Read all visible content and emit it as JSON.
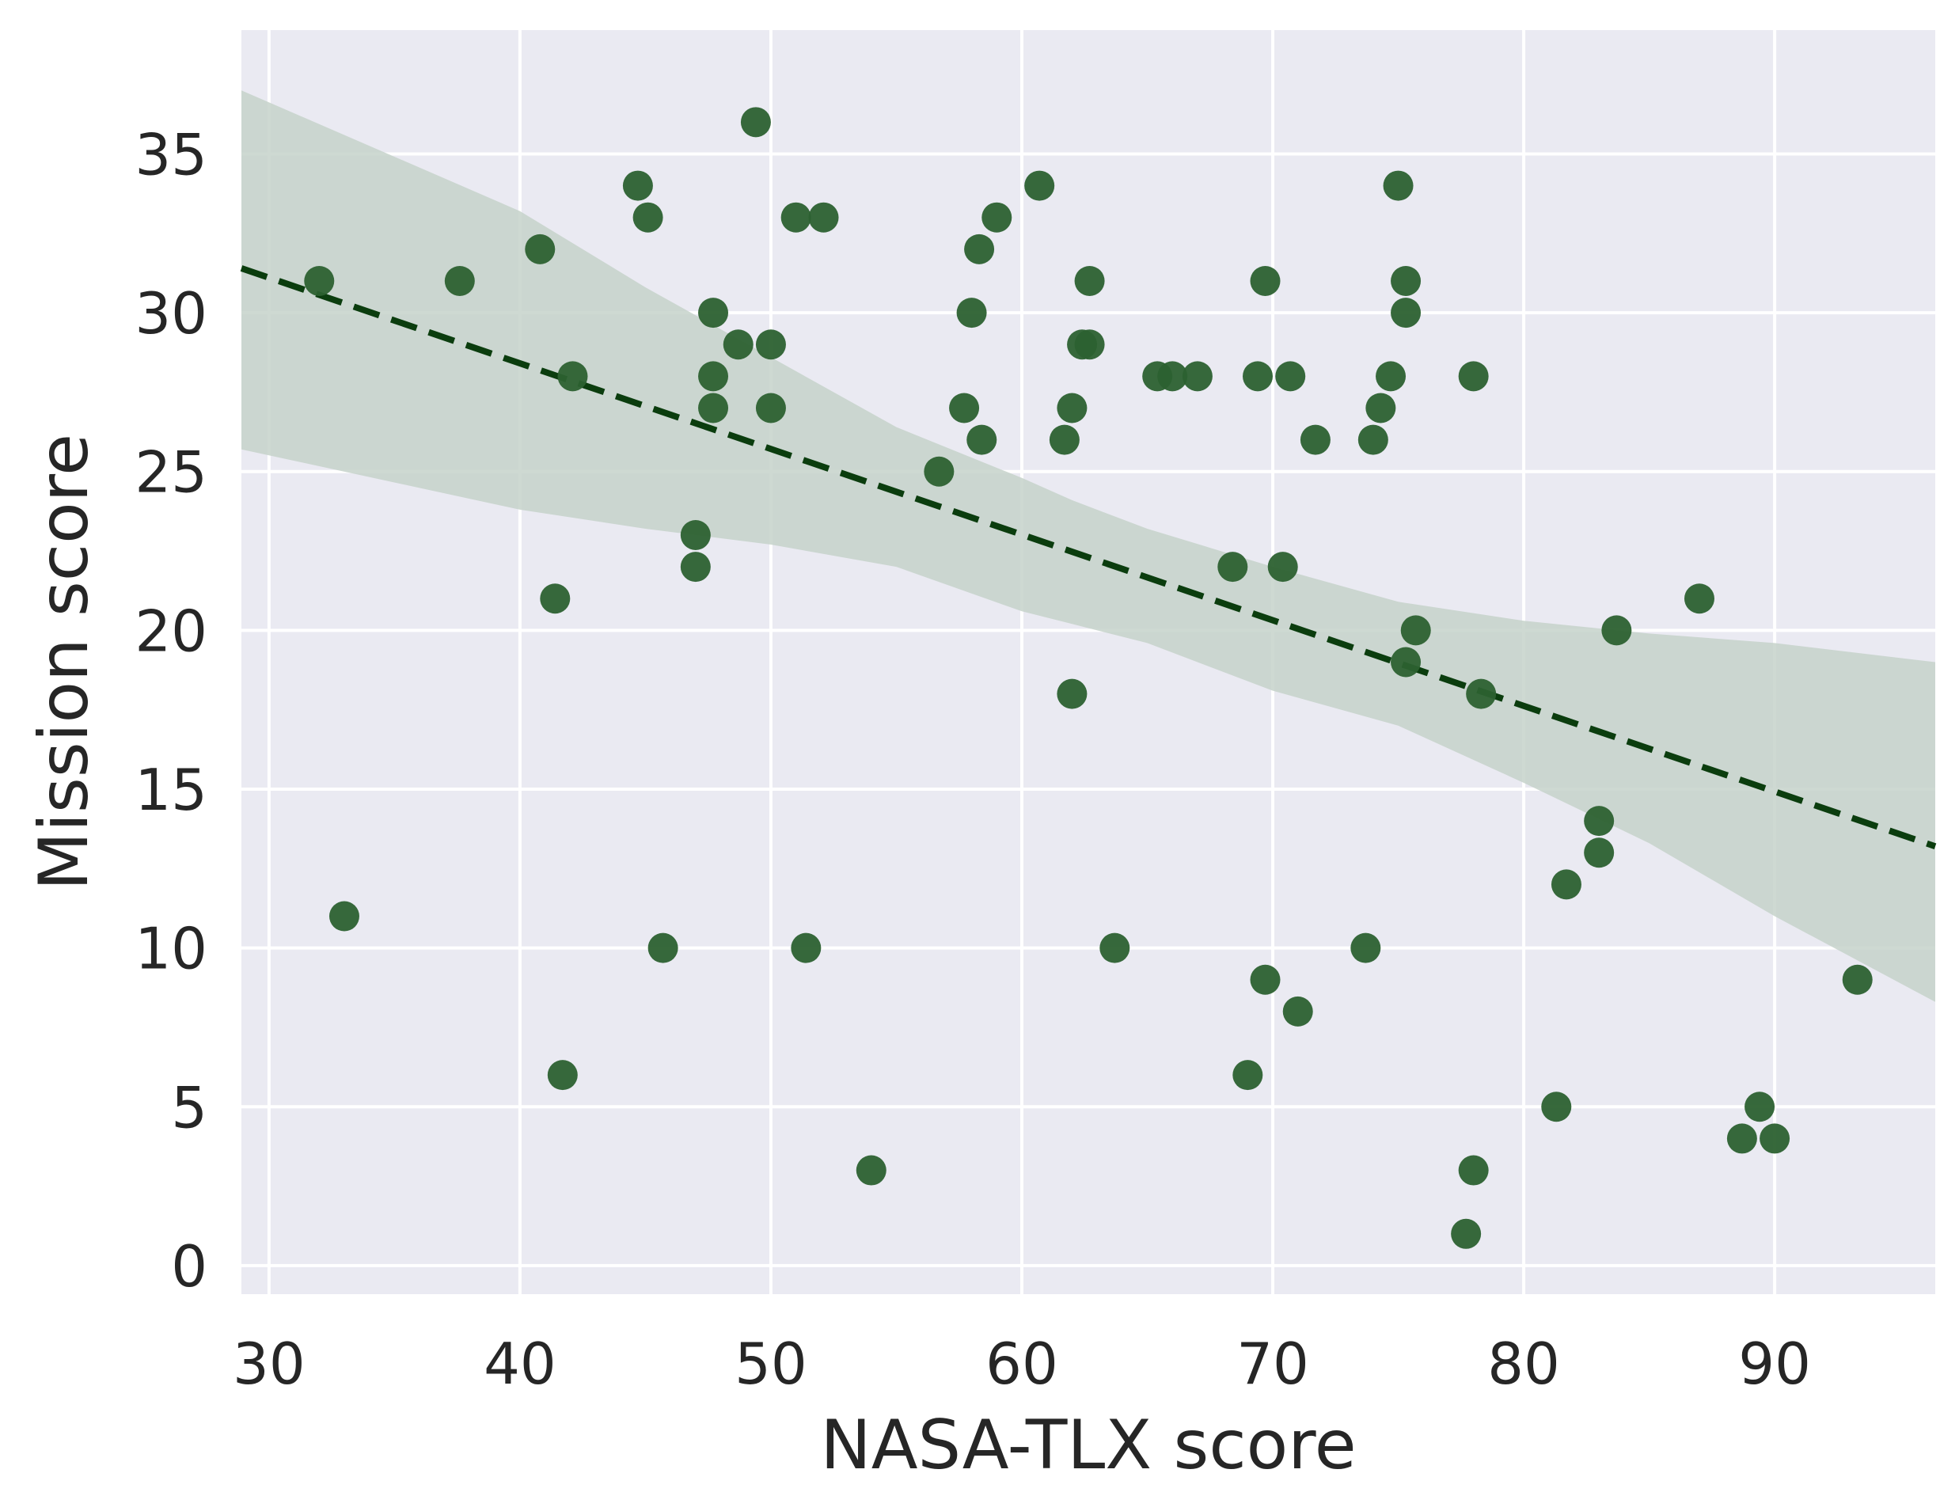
{
  "chart_data": {
    "type": "scatter",
    "xlabel": "NASA-TLX score",
    "ylabel": "Mission score",
    "xlim": [
      28.9,
      96.4
    ],
    "ylim": [
      -0.9,
      38.9
    ],
    "xticks": [
      30,
      40,
      50,
      60,
      70,
      80,
      90
    ],
    "yticks": [
      0,
      5,
      10,
      15,
      20,
      25,
      30,
      35
    ],
    "grid": true,
    "colors": {
      "background": "#eaeaf2",
      "grid": "#ffffff",
      "points": "#2c6130",
      "regression_line": "#0b3d0e",
      "confidence_band": "#c6d2ca"
    },
    "points": [
      {
        "x": 32.0,
        "y": 31
      },
      {
        "x": 33.0,
        "y": 11
      },
      {
        "x": 37.6,
        "y": 31
      },
      {
        "x": 40.8,
        "y": 32
      },
      {
        "x": 41.4,
        "y": 21
      },
      {
        "x": 41.7,
        "y": 6
      },
      {
        "x": 42.1,
        "y": 28
      },
      {
        "x": 44.7,
        "y": 34
      },
      {
        "x": 45.1,
        "y": 33
      },
      {
        "x": 45.7,
        "y": 10
      },
      {
        "x": 47.0,
        "y": 23
      },
      {
        "x": 47.0,
        "y": 22
      },
      {
        "x": 47.7,
        "y": 30
      },
      {
        "x": 47.7,
        "y": 28
      },
      {
        "x": 47.7,
        "y": 27
      },
      {
        "x": 48.7,
        "y": 29
      },
      {
        "x": 49.4,
        "y": 36
      },
      {
        "x": 50.0,
        "y": 29
      },
      {
        "x": 50.0,
        "y": 27
      },
      {
        "x": 51.0,
        "y": 33
      },
      {
        "x": 51.4,
        "y": 10
      },
      {
        "x": 52.1,
        "y": 33
      },
      {
        "x": 54.0,
        "y": 3
      },
      {
        "x": 56.7,
        "y": 25
      },
      {
        "x": 57.7,
        "y": 27
      },
      {
        "x": 58.0,
        "y": 30
      },
      {
        "x": 58.3,
        "y": 32
      },
      {
        "x": 58.4,
        "y": 26
      },
      {
        "x": 59.0,
        "y": 33
      },
      {
        "x": 60.7,
        "y": 34
      },
      {
        "x": 61.7,
        "y": 26
      },
      {
        "x": 62.0,
        "y": 27
      },
      {
        "x": 62.0,
        "y": 18
      },
      {
        "x": 62.4,
        "y": 29
      },
      {
        "x": 62.7,
        "y": 29
      },
      {
        "x": 62.7,
        "y": 31
      },
      {
        "x": 63.7,
        "y": 10
      },
      {
        "x": 65.4,
        "y": 28
      },
      {
        "x": 66.0,
        "y": 28
      },
      {
        "x": 67.0,
        "y": 28
      },
      {
        "x": 68.4,
        "y": 22
      },
      {
        "x": 69.0,
        "y": 6
      },
      {
        "x": 69.4,
        "y": 28
      },
      {
        "x": 69.7,
        "y": 31
      },
      {
        "x": 69.7,
        "y": 9
      },
      {
        "x": 70.4,
        "y": 22
      },
      {
        "x": 70.7,
        "y": 28
      },
      {
        "x": 71.0,
        "y": 8
      },
      {
        "x": 71.7,
        "y": 26
      },
      {
        "x": 73.7,
        "y": 10
      },
      {
        "x": 74.0,
        "y": 26
      },
      {
        "x": 74.3,
        "y": 27
      },
      {
        "x": 74.7,
        "y": 28
      },
      {
        "x": 75.0,
        "y": 34
      },
      {
        "x": 75.3,
        "y": 31
      },
      {
        "x": 75.3,
        "y": 30
      },
      {
        "x": 75.3,
        "y": 19
      },
      {
        "x": 75.7,
        "y": 20
      },
      {
        "x": 77.7,
        "y": 1
      },
      {
        "x": 78.0,
        "y": 28
      },
      {
        "x": 78.0,
        "y": 3
      },
      {
        "x": 78.3,
        "y": 18
      },
      {
        "x": 81.3,
        "y": 5
      },
      {
        "x": 81.7,
        "y": 12
      },
      {
        "x": 83.0,
        "y": 14
      },
      {
        "x": 83.0,
        "y": 13
      },
      {
        "x": 83.7,
        "y": 20
      },
      {
        "x": 87.0,
        "y": 21
      },
      {
        "x": 88.7,
        "y": 4
      },
      {
        "x": 89.4,
        "y": 5
      },
      {
        "x": 90.0,
        "y": 4
      },
      {
        "x": 93.3,
        "y": 9
      }
    ],
    "regression_line": {
      "x": [
        28.9,
        96.4
      ],
      "y": [
        31.4,
        13.2
      ]
    },
    "confidence_band": {
      "x": [
        28.9,
        40.0,
        45.0,
        50.0,
        55.0,
        60.0,
        62.0,
        65.0,
        70.0,
        75.0,
        80.0,
        85.0,
        90.0,
        96.4
      ],
      "upper": [
        37.0,
        33.2,
        30.8,
        28.6,
        26.4,
        24.8,
        24.1,
        23.2,
        22.0,
        20.9,
        20.3,
        19.9,
        19.6,
        19.0
      ],
      "lower": [
        25.7,
        23.8,
        23.2,
        22.7,
        22.0,
        20.6,
        20.2,
        19.6,
        18.1,
        17.0,
        15.2,
        13.3,
        11.0,
        8.3
      ]
    }
  }
}
